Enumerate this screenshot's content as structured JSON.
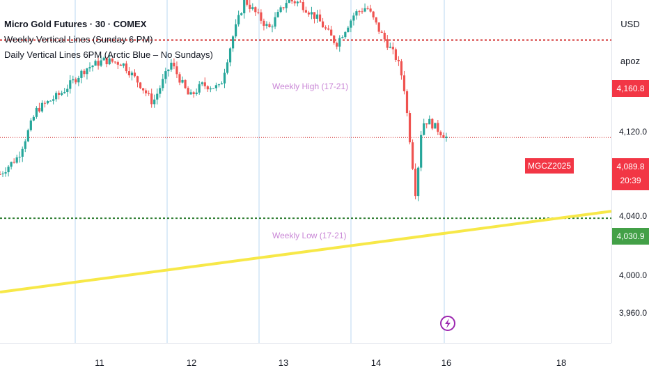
{
  "legend": {
    "title": "Micro Gold Futures · 30 · COMEX",
    "indicator1": "Weekly Vertical Lines (Sunday 6 PM)",
    "indicator2": "Daily Vertical Lines 6PM (Arctic Blue – No Sundays)"
  },
  "price_scale": {
    "currency": "USD",
    "scale_mode": "apoz",
    "ticks": [
      "4,120.0",
      "4,000.0",
      "3,960.0"
    ],
    "weekly_high_tag": "4,160.8",
    "current_price": "4,089.8",
    "countdown": "20:39",
    "weekly_low_tag": "4,030.9",
    "partial_tick": "4,040.0"
  },
  "symbol_tag": "MGCZ2025",
  "levels": {
    "weekly_high_label": "Weekly High (17-21)",
    "weekly_low_label": "Weekly Low (17-21)"
  },
  "time_scale": {
    "ticks": [
      "11",
      "12",
      "13",
      "14",
      "16",
      "18"
    ]
  },
  "colors": {
    "up": "#26a69a",
    "down": "#ef5350",
    "high_line": "#d32f2f",
    "low_line": "#2e7d32",
    "trend": "#f7e848",
    "vertical": "#b9d7f0",
    "tag_red": "#f23645",
    "tag_green": "#43a047",
    "alert": "#9c27b0"
  },
  "chart_data": {
    "type": "candlestick",
    "yrange": [
      3940,
      4190
    ],
    "levels": {
      "weekly_high": 4160.8,
      "weekly_low": 4030.9,
      "current": 4089.8
    },
    "trendline": {
      "from": [
        0,
        3977
      ],
      "to": [
        1,
        4036
      ]
    },
    "path": [
      [
        0,
        4063
      ],
      [
        0.03,
        4076
      ],
      [
        0.06,
        4110
      ],
      [
        0.1,
        4122
      ],
      [
        0.14,
        4140
      ],
      [
        0.17,
        4146
      ],
      [
        0.2,
        4144
      ],
      [
        0.23,
        4128
      ],
      [
        0.25,
        4115
      ],
      [
        0.28,
        4144
      ],
      [
        0.31,
        4119
      ],
      [
        0.33,
        4128
      ],
      [
        0.36,
        4126
      ],
      [
        0.38,
        4162
      ],
      [
        0.4,
        4190
      ],
      [
        0.44,
        4169
      ],
      [
        0.47,
        4190
      ],
      [
        0.49,
        4188
      ],
      [
        0.52,
        4176
      ],
      [
        0.55,
        4158
      ],
      [
        0.58,
        4180
      ],
      [
        0.6,
        4185
      ],
      [
        0.62,
        4168
      ],
      [
        0.65,
        4146
      ],
      [
        0.66,
        4130
      ],
      [
        0.67,
        4090
      ],
      [
        0.68,
        4048
      ],
      [
        0.69,
        4100
      ],
      [
        0.7,
        4102
      ],
      [
        0.72,
        4094
      ],
      [
        0.73,
        4090
      ]
    ]
  }
}
